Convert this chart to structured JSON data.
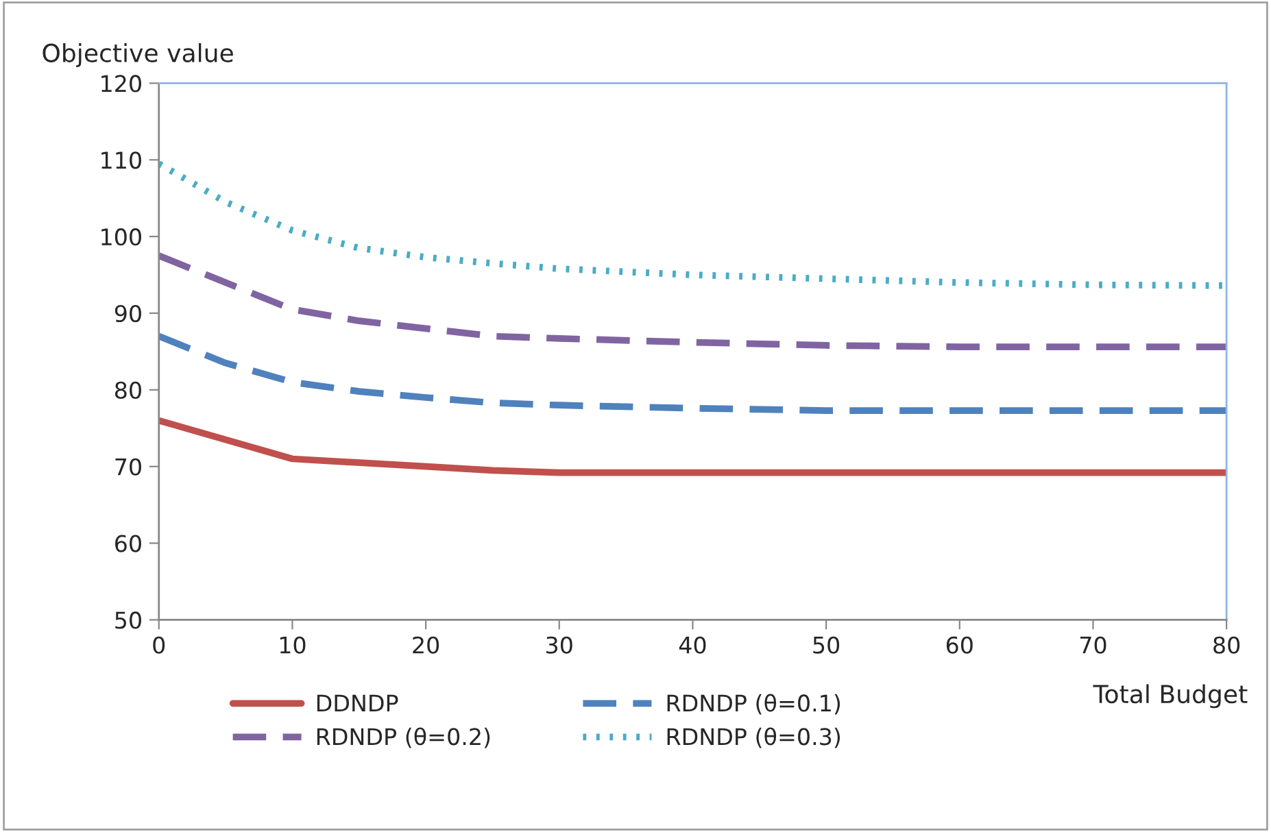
{
  "chart_data": {
    "type": "line",
    "ylabel": "Objective value",
    "xlabel": "Total Budget",
    "xlim": [
      0,
      80
    ],
    "xticks": [
      0,
      10,
      20,
      30,
      40,
      50,
      60,
      70,
      80
    ],
    "ylim": [
      50,
      120
    ],
    "yticks": [
      50,
      60,
      70,
      80,
      90,
      100,
      110,
      120
    ],
    "grid": false,
    "legend": "bottom",
    "marker": "none",
    "series": [
      {
        "name": "DDNDP",
        "color": "#c0504d",
        "line_style": "solid",
        "x": [
          0,
          10,
          20,
          25,
          30,
          40,
          50,
          60,
          70,
          80
        ],
        "values": [
          76,
          71,
          70,
          69.5,
          69.2,
          69.2,
          69.2,
          69.2,
          69.2,
          69.2
        ]
      },
      {
        "name": "RDNDP (θ=0.1)",
        "color": "#4f81bd",
        "line_style": "dashed",
        "x": [
          0,
          5,
          10,
          15,
          20,
          25,
          30,
          40,
          50,
          60,
          70,
          80
        ],
        "values": [
          87,
          83.5,
          81,
          79.8,
          79,
          78.3,
          78,
          77.6,
          77.3,
          77.3,
          77.3,
          77.3
        ]
      },
      {
        "name": "RDNDP (θ=0.2)",
        "color": "#8064a2",
        "line_style": "dashed",
        "x": [
          0,
          5,
          10,
          15,
          20,
          25,
          30,
          40,
          50,
          60,
          70,
          80
        ],
        "values": [
          97.5,
          94,
          90.5,
          89,
          88,
          87,
          86.7,
          86.2,
          85.8,
          85.6,
          85.6,
          85.6
        ]
      },
      {
        "name": "RDNDP (θ=0.3)",
        "color": "#4bacc6",
        "line_style": "dotted",
        "x": [
          0,
          5,
          10,
          15,
          20,
          25,
          30,
          40,
          50,
          60,
          70,
          80
        ],
        "values": [
          109.5,
          104.5,
          100.8,
          98.5,
          97.3,
          96.5,
          95.8,
          95,
          94.5,
          94,
          93.7,
          93.6
        ]
      }
    ]
  }
}
